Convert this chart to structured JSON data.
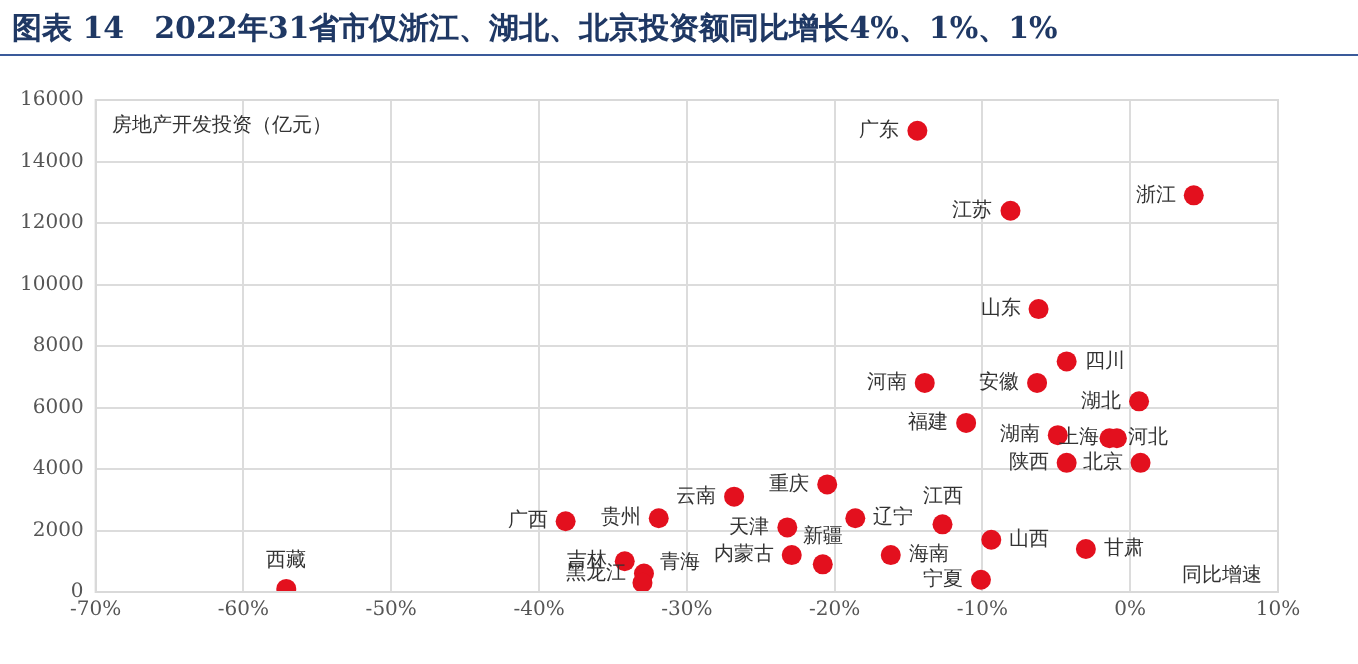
{
  "chart_data": {
    "type": "scatter",
    "title": "图表 14　2022年31省市仅浙江、湖北、北京投资额同比增长4%、1%、1%",
    "xlabel": "同比增速",
    "ylabel": "房地产开发投资（亿元）",
    "series": [
      {
        "color": "#e3101e",
        "x": [
          -14.4,
          4.3,
          -8.1,
          -6.2,
          -4.3,
          -13.9,
          -6.3,
          0.6,
          -11.1,
          -4.9,
          -1.4,
          -0.9,
          -4.3,
          0.7,
          -26.8,
          -20.5,
          -38.2,
          -31.9,
          -23.2,
          -18.6,
          -12.7,
          -9.4,
          -3.0,
          -22.9,
          -20.8,
          -16.2,
          -10.1,
          -34.2,
          -32.9,
          -33.0,
          -57.1
        ],
        "values": [
          15000,
          12900,
          12400,
          9200,
          7500,
          6800,
          6800,
          6200,
          5500,
          5100,
          5000,
          5000,
          4200,
          4200,
          3100,
          3500,
          2300,
          2400,
          2100,
          2400,
          2200,
          1700,
          1400,
          1200,
          900,
          1200,
          400,
          1000,
          600,
          300,
          100
        ]
      }
    ],
    "annotations": [
      {
        "text": "广东",
        "x": -14.4,
        "y": 15000
      },
      {
        "text": "浙江",
        "x": 4.3,
        "y": 12900
      },
      {
        "text": "江苏",
        "x": -8.1,
        "y": 12400
      },
      {
        "text": "山东",
        "x": -6.2,
        "y": 9200
      },
      {
        "text": "四川",
        "x": -4.3,
        "y": 7500
      },
      {
        "text": "河南",
        "x": -13.9,
        "y": 6800
      },
      {
        "text": "安徽",
        "x": -6.3,
        "y": 6800
      },
      {
        "text": "湖北",
        "x": 0.6,
        "y": 6200
      },
      {
        "text": "福建",
        "x": -11.1,
        "y": 5500
      },
      {
        "text": "湖南",
        "x": -4.9,
        "y": 5100
      },
      {
        "text": "河北",
        "x": -1.4,
        "y": 5000
      },
      {
        "text": "上海",
        "x": -0.9,
        "y": 5000
      },
      {
        "text": "陕西",
        "x": -4.3,
        "y": 4200
      },
      {
        "text": "北京",
        "x": 0.7,
        "y": 4200
      },
      {
        "text": "云南",
        "x": -26.8,
        "y": 3100
      },
      {
        "text": "重庆",
        "x": -20.5,
        "y": 3500
      },
      {
        "text": "广西",
        "x": -38.2,
        "y": 2300
      },
      {
        "text": "贵州",
        "x": -31.9,
        "y": 2400
      },
      {
        "text": "天津",
        "x": -23.2,
        "y": 2100
      },
      {
        "text": "辽宁",
        "x": -18.6,
        "y": 2400
      },
      {
        "text": "江西",
        "x": -12.7,
        "y": 2200
      },
      {
        "text": "山西",
        "x": -9.4,
        "y": 1700
      },
      {
        "text": "甘肃",
        "x": -3.0,
        "y": 1400
      },
      {
        "text": "内蒙古",
        "x": -22.9,
        "y": 1200
      },
      {
        "text": "新疆",
        "x": -20.8,
        "y": 900
      },
      {
        "text": "海南",
        "x": -16.2,
        "y": 1200
      },
      {
        "text": "宁夏",
        "x": -10.1,
        "y": 400
      },
      {
        "text": "吉林",
        "x": -34.2,
        "y": 1000
      },
      {
        "text": "黑龙江",
        "x": -32.9,
        "y": 600
      },
      {
        "text": "青海",
        "x": -33.0,
        "y": 300
      },
      {
        "text": "西藏",
        "x": -57.1,
        "y": 100
      }
    ],
    "xlim": [
      -70,
      10
    ],
    "ylim": [
      0,
      16000
    ],
    "xticks": [
      {
        "value": -70,
        "label": "-70%"
      },
      {
        "value": -60,
        "label": "-60%"
      },
      {
        "value": -50,
        "label": "-50%"
      },
      {
        "value": -40,
        "label": "-40%"
      },
      {
        "value": -30,
        "label": "-30%"
      },
      {
        "value": -20,
        "label": "-20%"
      },
      {
        "value": -10,
        "label": "-10%"
      },
      {
        "value": 0,
        "label": "0%"
      },
      {
        "value": 10,
        "label": "10%"
      }
    ],
    "yticks": [
      0,
      2000,
      4000,
      6000,
      8000,
      10000,
      12000,
      14000,
      16000
    ],
    "grid": true,
    "legend": false,
    "marker": "circle"
  }
}
